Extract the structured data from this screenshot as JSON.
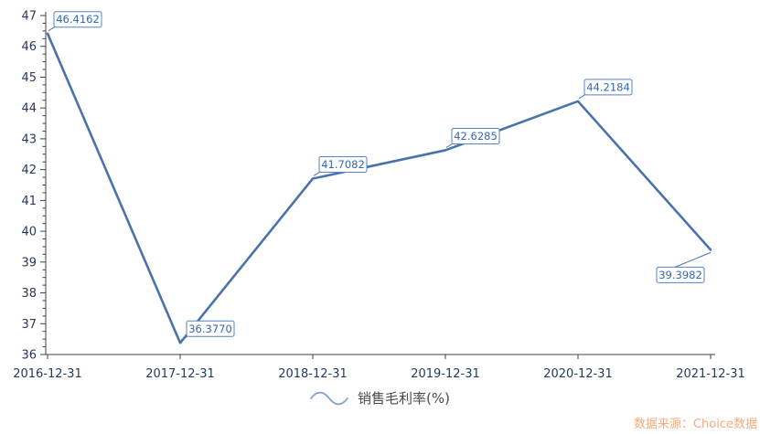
{
  "chart_data": {
    "type": "line",
    "title": "",
    "xlabel": "",
    "ylabel": "",
    "categories": [
      "2016-12-31",
      "2017-12-31",
      "2018-12-31",
      "2019-12-31",
      "2020-12-31",
      "2021-12-31"
    ],
    "series": [
      {
        "name": "销售毛利率(%)",
        "values": [
          46.4162,
          36.377,
          41.7082,
          42.6285,
          44.2184,
          39.3982
        ],
        "point_labels": [
          "46.4162",
          "36.3770",
          "41.7082",
          "42.6285",
          "44.2184",
          "39.3982"
        ],
        "label_placement": [
          "above-right",
          "above-right",
          "above-right",
          "above-right",
          "above-right",
          "below-left"
        ]
      }
    ],
    "ylim": [
      36,
      47
    ],
    "y_major_step": 1,
    "y_minor_step": 0.25,
    "grid": false,
    "legend": {
      "label": "销售毛利率(%)",
      "position": "bottom-center"
    },
    "source_note": "数据来源：Choice数据",
    "colors": {
      "line": "#4a72ab",
      "point_label_text": "#3667b1",
      "point_label_border": "#5585c5",
      "point_label_bg": "#ffffff",
      "axis_line": "#404040",
      "axis_text": "#25395c",
      "legend_text": "#4a4a4a",
      "legend_icon": "#7da1cd",
      "source_text": "#f8a978"
    }
  }
}
